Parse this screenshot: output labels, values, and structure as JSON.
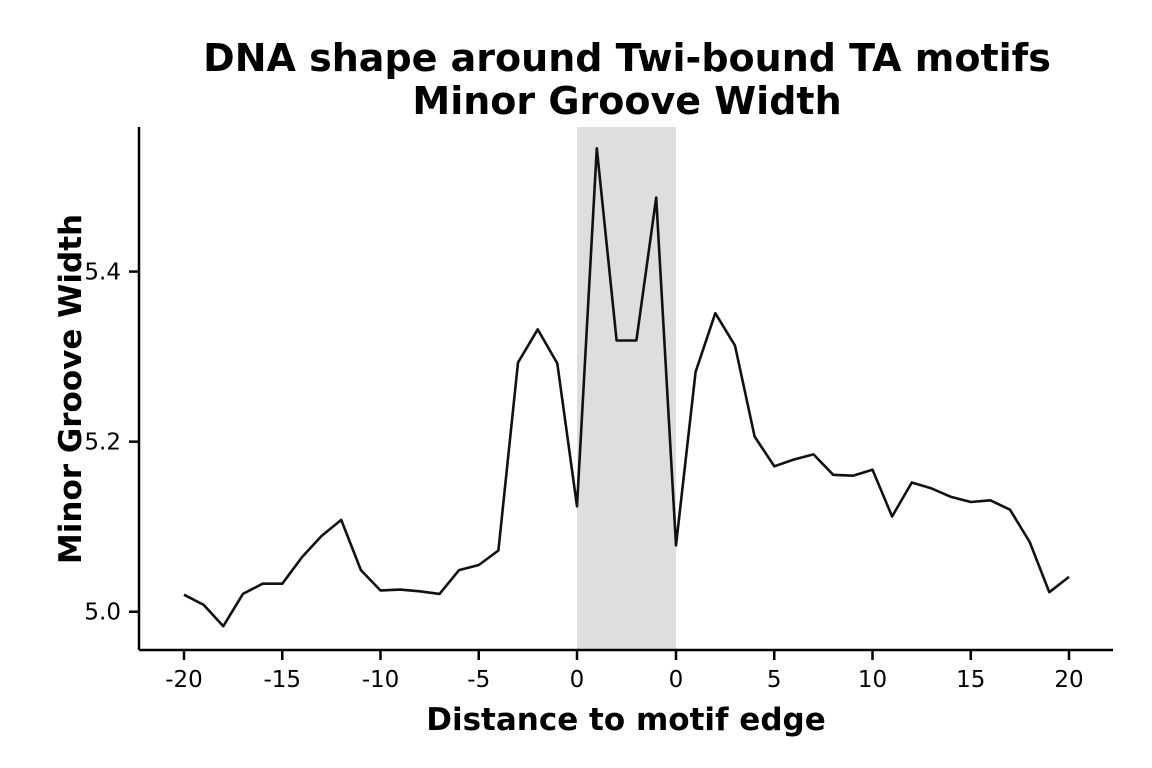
{
  "chart_data": {
    "type": "line",
    "title": "DNA shape around Twi-bound TA motifs",
    "subtitle": "Minor Groove Width",
    "xlabel": "Distance to motif edge",
    "ylabel": "Minor Groove Width",
    "grid": false,
    "legend": "none",
    "ylim": [
      4.955,
      5.57
    ],
    "y_ticks": [
      5.0,
      5.2,
      5.4
    ],
    "y_tick_labels": [
      "5.0",
      "5.2",
      "5.4"
    ],
    "x_tick_labels": [
      "-20",
      "-15",
      "-10",
      "-5",
      "0",
      "0",
      "5",
      "10",
      "15",
      "20"
    ],
    "motif_region": {
      "start_label": "0",
      "end_label": "0",
      "color": "#dedede"
    },
    "left_flank": {
      "x": [
        -20,
        -19,
        -18,
        -17,
        -16,
        -15,
        -14,
        -13,
        -12,
        -11,
        -10,
        -9,
        -8,
        -7,
        -6,
        -5,
        -4,
        -3,
        -2,
        -1,
        0
      ],
      "y": [
        5.02,
        5.008,
        4.983,
        5.021,
        5.033,
        5.033,
        5.064,
        5.089,
        5.108,
        5.049,
        5.025,
        5.026,
        5.024,
        5.021,
        5.049,
        5.055,
        5.072,
        5.293,
        5.332,
        5.292,
        5.124
      ]
    },
    "motif": {
      "y": [
        5.124,
        5.545,
        5.319,
        5.319,
        5.487,
        5.078
      ]
    },
    "right_flank": {
      "x": [
        0,
        1,
        2,
        3,
        4,
        5,
        6,
        7,
        8,
        9,
        10,
        11,
        12,
        13,
        14,
        15,
        16,
        17,
        18,
        19,
        20
      ],
      "y": [
        5.078,
        5.282,
        5.351,
        5.313,
        5.206,
        5.171,
        5.179,
        5.185,
        5.161,
        5.16,
        5.167,
        5.112,
        5.152,
        5.145,
        5.135,
        5.129,
        5.131,
        5.12,
        5.082,
        5.023,
        5.041
      ]
    },
    "line_color": "#111111"
  }
}
